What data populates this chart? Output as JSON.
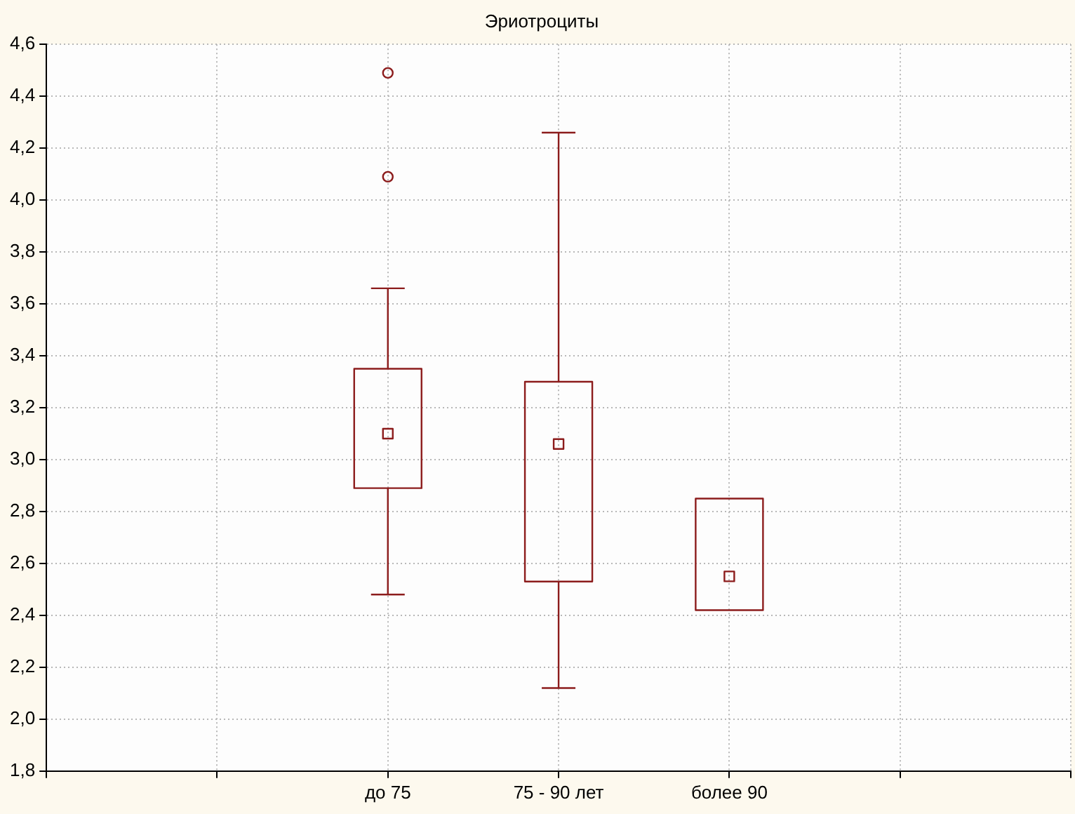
{
  "chart_data": {
    "type": "box",
    "title": "Эриотроциты",
    "categories": [
      null,
      null,
      "до 75",
      "75 - 90 лет",
      "более 90",
      null,
      null
    ],
    "boxes": [
      null,
      null,
      {
        "low": 2.48,
        "q1": 2.89,
        "median": 3.1,
        "q3": 3.35,
        "high": 3.66,
        "outliers": [
          4.09,
          4.49
        ]
      },
      {
        "low": 2.12,
        "q1": 2.53,
        "median": 3.06,
        "q3": 3.3,
        "high": 4.26
      },
      {
        "low": 2.42,
        "q1": 2.42,
        "median": 2.55,
        "q3": 2.85,
        "high": 2.85
      },
      null,
      null
    ],
    "color": "#8c1c1c",
    "ylim": [
      1.8,
      4.6
    ],
    "yticks": [
      {
        "value": 1.8,
        "label": "1,8"
      },
      {
        "value": 2.0,
        "label": "2,0"
      },
      {
        "value": 2.2,
        "label": "2,2"
      },
      {
        "value": 2.4,
        "label": "2,4"
      },
      {
        "value": 2.6,
        "label": "2,6"
      },
      {
        "value": 2.8,
        "label": "2,8"
      },
      {
        "value": 3.0,
        "label": "3,0"
      },
      {
        "value": 3.2,
        "label": "3,2"
      },
      {
        "value": 3.4,
        "label": "3,4"
      },
      {
        "value": 3.6,
        "label": "3,6"
      },
      {
        "value": 3.8,
        "label": "3,8"
      },
      {
        "value": 4.0,
        "label": "4,0"
      },
      {
        "value": 4.2,
        "label": "4,2"
      },
      {
        "value": 4.4,
        "label": "4,4"
      },
      {
        "value": 4.6,
        "label": "4,6"
      }
    ],
    "grid": true
  }
}
